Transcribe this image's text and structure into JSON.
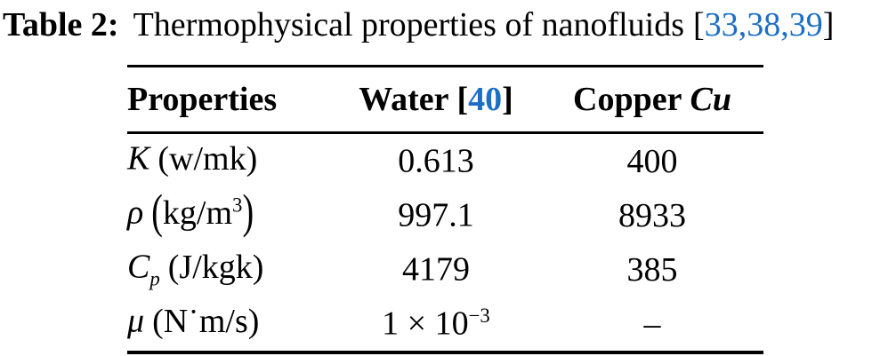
{
  "colors": {
    "text": "#000000",
    "citation_blue": "#1c6fc4",
    "background": "#ffffff"
  },
  "caption": {
    "label": "Table 2:",
    "text": "Thermophysical properties of nanofluids",
    "cite_open": "[",
    "citations": "33,38,39",
    "cite_close": "]"
  },
  "table": {
    "headers": {
      "properties": "Properties",
      "water": "Water",
      "water_cite_open": "[",
      "water_cite": "40",
      "water_cite_close": "]",
      "copper": "Copper",
      "copper_symbol": "Cu"
    },
    "rows": [
      {
        "property": {
          "symbol": "K",
          "sub": "",
          "open": "(",
          "body": "w/mk",
          "sup": "",
          "close": ")"
        },
        "water": {
          "main": "0.613",
          "sup": ""
        },
        "copper": "400"
      },
      {
        "property": {
          "symbol": "ρ",
          "sub": "",
          "open": "(",
          "body": "kg/m",
          "sup": "3",
          "close": ")"
        },
        "water": {
          "main": "997.1",
          "sup": ""
        },
        "copper": "8933"
      },
      {
        "property": {
          "symbol": "C",
          "sub": "p",
          "open": "(",
          "body": "J/kgk",
          "sup": "",
          "close": ")"
        },
        "water": {
          "main": "4179",
          "sup": ""
        },
        "copper": "385"
      },
      {
        "property": {
          "symbol": "μ",
          "sub": "",
          "open": "(",
          "body": "N˙m/s",
          "sup": "",
          "close": ")"
        },
        "water": {
          "main": "1 × 10",
          "sup": "−3"
        },
        "copper": "–"
      }
    ]
  }
}
